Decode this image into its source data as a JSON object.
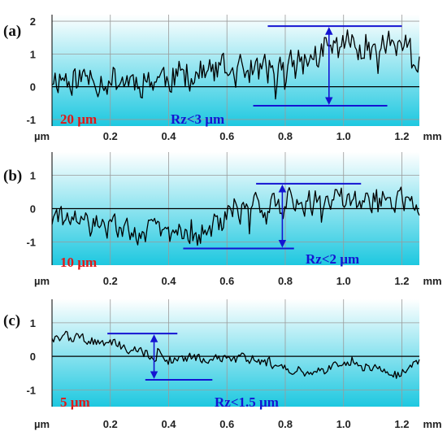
{
  "colors": {
    "fill_top": "#ffffff",
    "fill_bottom": "#1ec8e0",
    "grid": "#9a9a9a",
    "profile": "#000000",
    "marker": "#1414d2",
    "scale_label": "#e01818",
    "rz_label": "#1414d2"
  },
  "chart_data": [
    {
      "type": "line",
      "panel_label": "(a)",
      "x_unit": "µm",
      "x_end_unit": "mm",
      "xlim": [
        0.0,
        1.26
      ],
      "ylim": [
        -1.2,
        2.2
      ],
      "x_ticks": [
        "0.2",
        "0.4",
        "0.6",
        "0.8",
        "1.0",
        "1.2"
      ],
      "y_ticks": [
        "2",
        "1",
        "0",
        "-1"
      ],
      "scale_label": "20 µm",
      "rz_label": "Rz<3 µm",
      "profile_seed": 11,
      "profile_amplitude": 0.45,
      "profile_trend": [
        [
          0.0,
          0.3
        ],
        [
          0.3,
          0.2
        ],
        [
          0.5,
          0.4
        ],
        [
          0.7,
          0.5
        ],
        [
          0.8,
          0.5
        ],
        [
          1.0,
          1.3
        ],
        [
          1.2,
          1.3
        ],
        [
          1.26,
          0.6
        ]
      ],
      "peak_line": {
        "x1": 0.74,
        "x2": 1.2,
        "y": 1.85
      },
      "valley_line": {
        "x1": 0.69,
        "x2": 1.15,
        "y": -0.58
      },
      "arrow": {
        "x": 0.95,
        "y_top": 1.85,
        "y_bottom": -0.58
      }
    },
    {
      "type": "line",
      "panel_label": "(b)",
      "x_unit": "µm",
      "x_end_unit": "mm",
      "xlim": [
        0.0,
        1.26
      ],
      "ylim": [
        -1.7,
        1.7
      ],
      "x_ticks": [
        "0.2",
        "0.4",
        "0.6",
        "0.8",
        "1.0",
        "1.2"
      ],
      "y_ticks": [
        "1",
        "0",
        "-1"
      ],
      "scale_label": "10 µm",
      "rz_label": "Rz<2 µm",
      "profile_seed": 29,
      "profile_amplitude": 0.35,
      "profile_trend": [
        [
          0.0,
          -0.3
        ],
        [
          0.2,
          -0.6
        ],
        [
          0.4,
          -0.7
        ],
        [
          0.5,
          -0.8
        ],
        [
          0.6,
          -0.3
        ],
        [
          0.7,
          0.1
        ],
        [
          0.9,
          0.2
        ],
        [
          1.1,
          0.3
        ],
        [
          1.26,
          0.2
        ]
      ],
      "peak_line": {
        "x1": 0.7,
        "x2": 1.06,
        "y": 0.75
      },
      "valley_line": {
        "x1": 0.45,
        "x2": 0.83,
        "y": -1.2
      },
      "arrow": {
        "x": 0.79,
        "y_top": 0.75,
        "y_bottom": -1.2
      }
    },
    {
      "type": "line",
      "panel_label": "(c)",
      "x_unit": "µm",
      "x_end_unit": "mm",
      "xlim": [
        0.0,
        1.26
      ],
      "ylim": [
        -1.5,
        1.7
      ],
      "x_ticks": [
        "0.2",
        "0.4",
        "0.6",
        "0.8",
        "1.0",
        "1.2"
      ],
      "y_ticks": [
        "1",
        "0",
        "-1"
      ],
      "scale_label": "5 µm",
      "rz_label": "Rz<1.5 µm",
      "profile_seed": 47,
      "profile_amplitude": 0.14,
      "profile_trend": [
        [
          0.0,
          0.6
        ],
        [
          0.2,
          0.4
        ],
        [
          0.3,
          0.15
        ],
        [
          0.4,
          -0.1
        ],
        [
          0.6,
          0.0
        ],
        [
          0.75,
          -0.2
        ],
        [
          0.9,
          -0.5
        ],
        [
          1.0,
          -0.2
        ],
        [
          1.2,
          -0.5
        ],
        [
          1.26,
          -0.2
        ]
      ],
      "peak_line": {
        "x1": 0.19,
        "x2": 0.43,
        "y": 0.68
      },
      "valley_line": {
        "x1": 0.32,
        "x2": 0.55,
        "y": -0.7
      },
      "arrow": {
        "x": 0.35,
        "y_top": 0.68,
        "y_bottom": -0.7
      }
    }
  ]
}
